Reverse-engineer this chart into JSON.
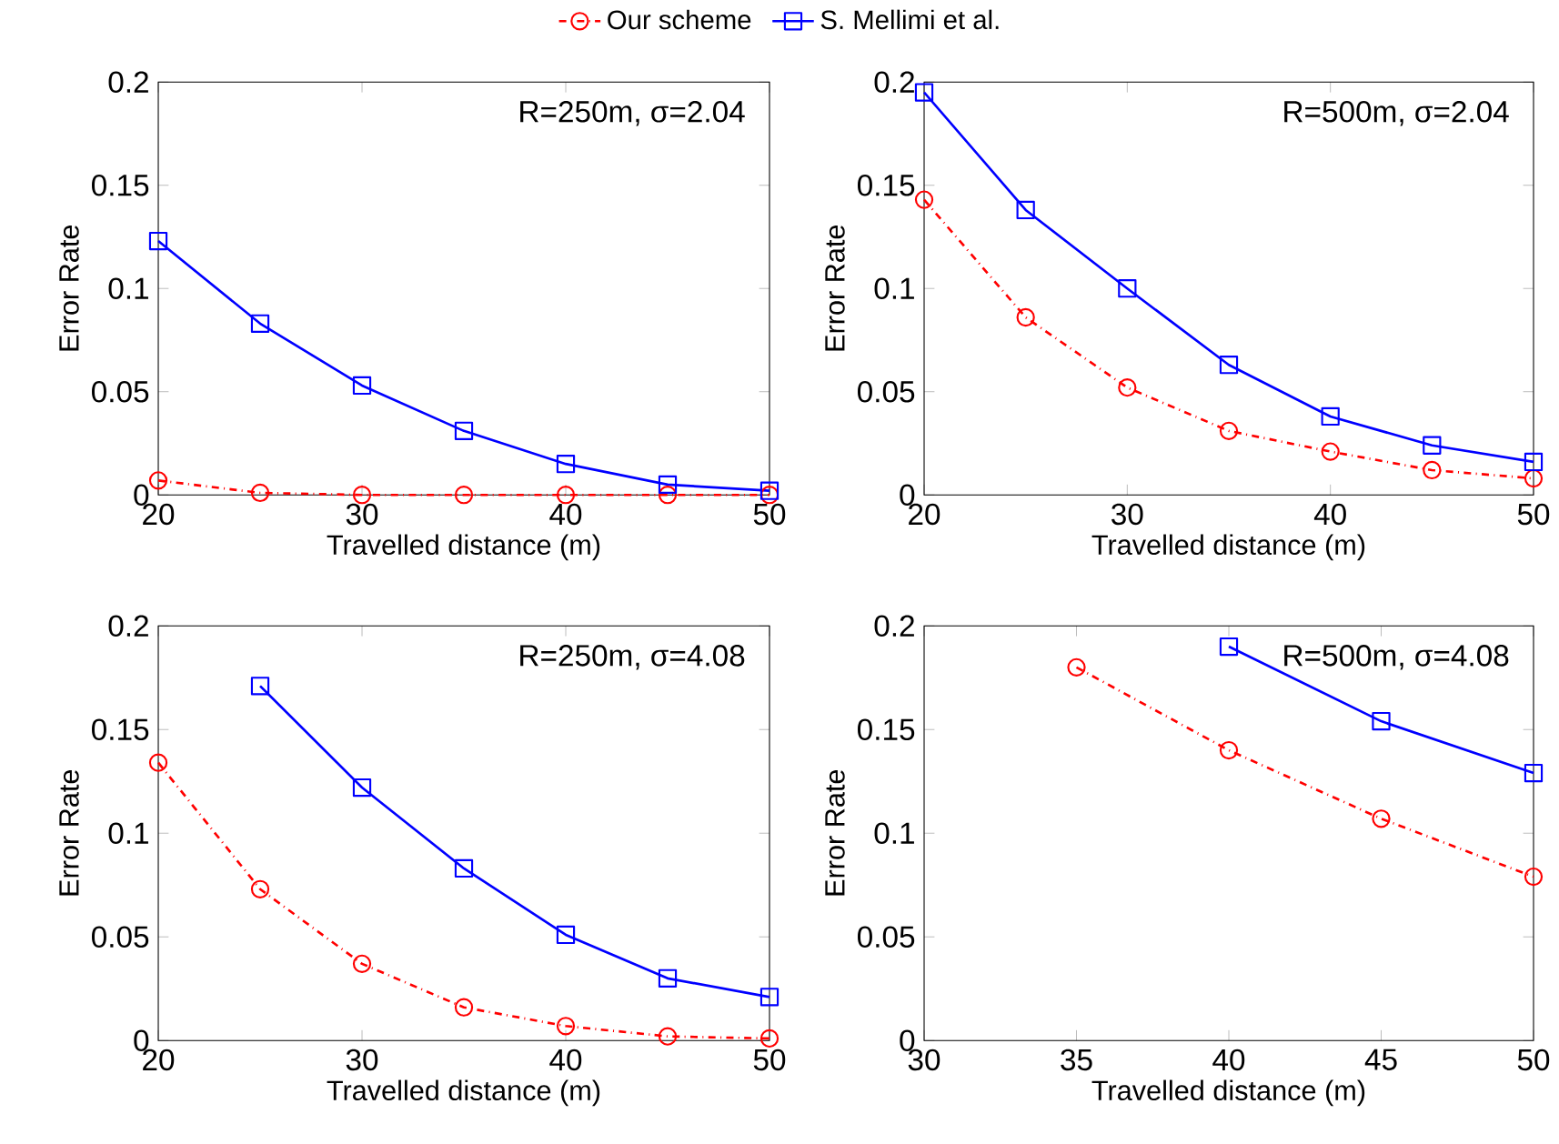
{
  "chart_data": [
    {
      "type": "line",
      "xlabel": "Travelled distance (m)",
      "ylabel": "Error Rate",
      "annotations": [
        "R=250m, σ=2.04"
      ],
      "x": [
        20,
        25,
        30,
        35,
        40,
        45,
        50
      ],
      "xlim": [
        20,
        50
      ],
      "xticks": [
        20,
        30,
        40,
        50
      ],
      "ylim": [
        0,
        0.2
      ],
      "yticks": [
        0,
        0.05,
        0.1,
        0.15,
        0.2
      ],
      "legend": "top",
      "series": [
        {
          "name": "Our scheme",
          "color": "#ff0000",
          "marker": "circle",
          "line_style": "dashdot",
          "values": [
            0.007,
            0.001,
            0,
            0,
            0,
            0,
            0
          ]
        },
        {
          "name": "S. Mellimi et al.",
          "color": "#0000ff",
          "marker": "square",
          "line_style": "solid",
          "values": [
            0.123,
            0.083,
            0.053,
            0.031,
            0.015,
            0.005,
            0.002
          ]
        }
      ]
    },
    {
      "type": "line",
      "xlabel": "Travelled distance (m)",
      "ylabel": "Error Rate",
      "annotations": [
        "R=500m, σ=2.04"
      ],
      "x": [
        20,
        25,
        30,
        35,
        40,
        45,
        50
      ],
      "xlim": [
        20,
        50
      ],
      "xticks": [
        20,
        30,
        40,
        50
      ],
      "ylim": [
        0,
        0.2
      ],
      "yticks": [
        0,
        0.05,
        0.1,
        0.15,
        0.2
      ],
      "series": [
        {
          "color": "#ff0000",
          "marker": "circle",
          "line_style": "dashdot",
          "values": [
            0.143,
            0.086,
            0.052,
            0.031,
            0.021,
            0.012,
            0.008
          ]
        },
        {
          "color": "#0000ff",
          "marker": "square",
          "line_style": "solid",
          "values": [
            0.195,
            0.138,
            0.1,
            0.063,
            0.038,
            0.024,
            0.016
          ]
        }
      ]
    },
    {
      "type": "line",
      "xlabel": "Travelled distance (m)",
      "ylabel": "Error Rate",
      "annotations": [
        "R=250m, σ=4.08"
      ],
      "x": [
        20,
        25,
        30,
        35,
        40,
        45,
        50
      ],
      "xlim": [
        20,
        50
      ],
      "xticks": [
        20,
        30,
        40,
        50
      ],
      "ylim": [
        0,
        0.2
      ],
      "yticks": [
        0,
        0.05,
        0.1,
        0.15,
        0.2
      ],
      "series": [
        {
          "color": "#ff0000",
          "marker": "circle",
          "line_style": "dashdot",
          "values": [
            0.134,
            0.073,
            0.037,
            0.016,
            0.007,
            0.002,
            0.001
          ]
        },
        {
          "color": "#0000ff",
          "marker": "square",
          "line_style": "solid",
          "values": [
            null,
            0.171,
            0.122,
            0.083,
            0.051,
            0.03,
            0.021
          ]
        }
      ]
    },
    {
      "type": "line",
      "xlabel": "Travelled distance (m)",
      "ylabel": "Error Rate",
      "annotations": [
        "R=500m, σ=4.08"
      ],
      "xlim": [
        30,
        50
      ],
      "xticks": [
        30,
        35,
        40,
        45,
        50
      ],
      "ylim": [
        0,
        0.2
      ],
      "yticks": [
        0,
        0.05,
        0.1,
        0.15,
        0.2
      ],
      "series": [
        {
          "color": "#ff0000",
          "marker": "circle",
          "line_style": "dashdot",
          "x": [
            35,
            40,
            45,
            50
          ],
          "values": [
            0.18,
            0.14,
            0.107,
            0.079
          ]
        },
        {
          "color": "#0000ff",
          "marker": "square",
          "line_style": "solid",
          "x": [
            40,
            45,
            50
          ],
          "values": [
            0.19,
            0.154,
            0.129
          ]
        }
      ]
    }
  ]
}
